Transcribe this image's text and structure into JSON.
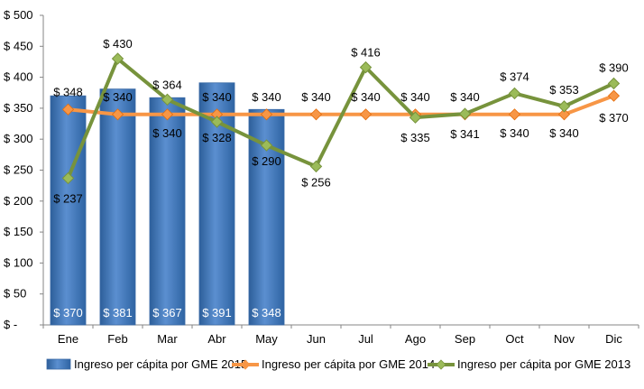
{
  "chart_data": {
    "type": "bar",
    "categories": [
      "Ene",
      "Feb",
      "Mar",
      "Abr",
      "May",
      "Jun",
      "Jul",
      "Ago",
      "Sep",
      "Oct",
      "Nov",
      "Dic"
    ],
    "y_tick_labels": [
      "$ -",
      "$ 50",
      "$ 100",
      "$ 150",
      "$ 200",
      "$ 250",
      "$ 300",
      "$ 350",
      "$ 400",
      "$ 450",
      "$ 500"
    ],
    "y_ticks": [
      0,
      50,
      100,
      150,
      200,
      250,
      300,
      350,
      400,
      450,
      500
    ],
    "ylim": [
      0,
      500
    ],
    "grid": false,
    "legend_position": "bottom",
    "series": [
      {
        "name": "Ingreso per cápita por GME 2015",
        "type": "bar",
        "color": "#4F81BD",
        "values": [
          370,
          381,
          367,
          391,
          348,
          null,
          null,
          null,
          null,
          null,
          null,
          null
        ],
        "labels": [
          "$ 370",
          "$ 381",
          "$ 367",
          "$ 391",
          "$ 348",
          null,
          null,
          null,
          null,
          null,
          null,
          null
        ]
      },
      {
        "name": "Ingreso per cápita por GME 2014",
        "type": "line",
        "color": "#F79646",
        "values": [
          348,
          340,
          340,
          340,
          340,
          340,
          340,
          340,
          340,
          340,
          340,
          370
        ],
        "labels": [
          "$ 348",
          "$ 340",
          "$ 340",
          "$ 340",
          "$ 340",
          "$ 340",
          "$ 340",
          "$ 340",
          "$ 340",
          "$ 340",
          "$ 340",
          "$ 370"
        ]
      },
      {
        "name": "Ingreso per cápita por GME 2013",
        "type": "line",
        "color": "#77933C",
        "values": [
          237,
          430,
          364,
          328,
          290,
          256,
          416,
          335,
          341,
          374,
          353,
          390
        ],
        "labels": [
          "$ 237",
          "$ 430",
          "$ 364",
          "$ 328",
          "$ 290",
          "$ 256",
          "$ 416",
          "$ 335",
          "$ 341",
          "$ 374",
          "$ 353",
          "$ 390"
        ]
      }
    ]
  }
}
